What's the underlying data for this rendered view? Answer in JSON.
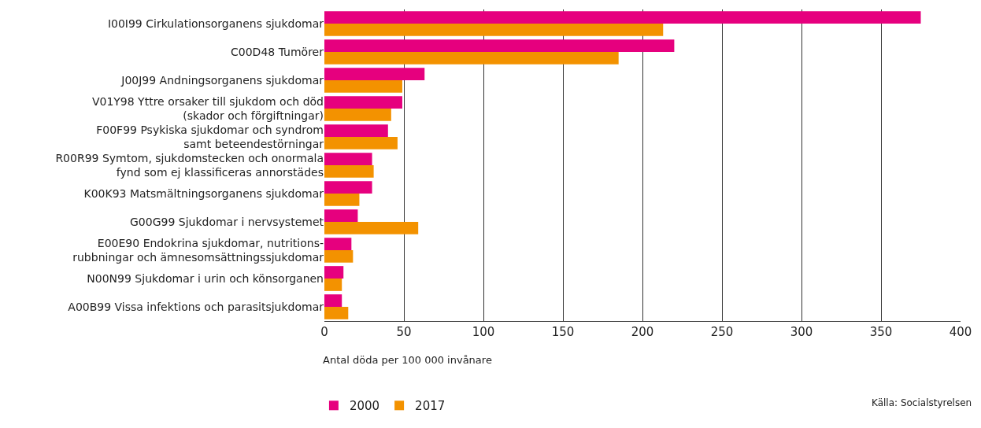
{
  "chart_data": {
    "type": "bar",
    "orientation": "horizontal",
    "xlabel": "Antal döda per 100 000 invånare",
    "categories": [
      "I00I99 Cirkulationsorganens sjukdomar",
      "C00D48 Tumörer",
      "J00J99 Andningsorganens sjukdomar",
      "V01Y98 Yttre orsaker till sjukdom och död\n(skador och förgiftningar)",
      "F00F99 Psykiska sjukdomar och syndrom\nsamt beteendestörningar",
      "R00R99 Symtom, sjukdomstecken och onormala\nfynd som ej klassificeras annorstädes",
      "K00K93 Matsmältningsorganens sjukdomar",
      "G00G99 Sjukdomar i nervsystemet",
      "E00E90 Endokrina sjukdomar, nutritions-\nrubbningar och ämnesomsättningssjukdomar",
      "N00N99 Sjukdomar i urin och könsorganen",
      "A00B99 Vissa infektions och parasitsjukdomar"
    ],
    "series": [
      {
        "name": "2000",
        "color": "#e6007e",
        "values": [
          375,
          220,
          63,
          49,
          40,
          30,
          30,
          21,
          17,
          12,
          11
        ]
      },
      {
        "name": "2017",
        "color": "#f39200",
        "values": [
          213,
          185,
          49,
          42,
          46,
          31,
          22,
          59,
          18,
          11,
          15
        ]
      }
    ],
    "xlim": [
      0,
      400
    ],
    "xticks": [
      0,
      50,
      100,
      150,
      200,
      250,
      300,
      350,
      400
    ],
    "grid": "x",
    "legend": "bottom left",
    "annotations": [
      "Källa: Socialstyrelsen"
    ]
  }
}
